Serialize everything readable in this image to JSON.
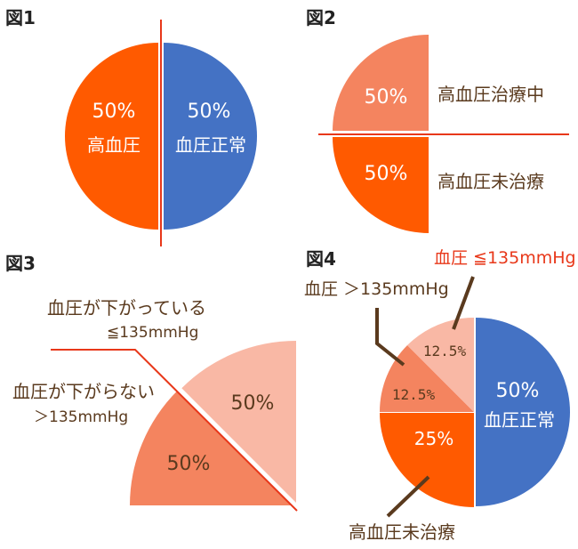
{
  "colors": {
    "orange": "#ff5a00",
    "blue": "#4472c4",
    "salmon": "#f4845f",
    "light_salmon": "#f9b8a5",
    "red_line": "#e8381a",
    "brown_text": "#5a3a1e",
    "dark_leader": "#5a3a1e"
  },
  "chart_data": [
    {
      "type": "pie",
      "figure_label": "図1",
      "slices": [
        {
          "name": "高血圧",
          "value": 50,
          "label": "50%"
        },
        {
          "name": "血圧正常",
          "value": 50,
          "label": "50%"
        }
      ]
    },
    {
      "type": "pie",
      "figure_label": "図2",
      "slices": [
        {
          "name": "高血圧治療中",
          "value": 50,
          "label": "50%"
        },
        {
          "name": "高血圧未治療",
          "value": 50,
          "label": "50%"
        }
      ]
    },
    {
      "type": "pie",
      "figure_label": "図3",
      "slices": [
        {
          "name": "血圧が下がっている",
          "sub": "≦135mmHg",
          "value": 50,
          "label": "50%"
        },
        {
          "name": "血圧が下がらない",
          "sub": "＞135mmHg",
          "value": 50,
          "label": "50%"
        }
      ]
    },
    {
      "type": "pie",
      "figure_label": "図4",
      "slices": [
        {
          "name": "血圧正常",
          "value": 50,
          "label": "50%"
        },
        {
          "name": "高血圧未治療",
          "value": 25,
          "label": "25%"
        },
        {
          "name": "血圧 ＞135mmHg",
          "value": 12.5,
          "label": "12.5%"
        },
        {
          "name": "血圧 ≦135mmHg",
          "value": 12.5,
          "label": "12.5%"
        }
      ]
    }
  ]
}
